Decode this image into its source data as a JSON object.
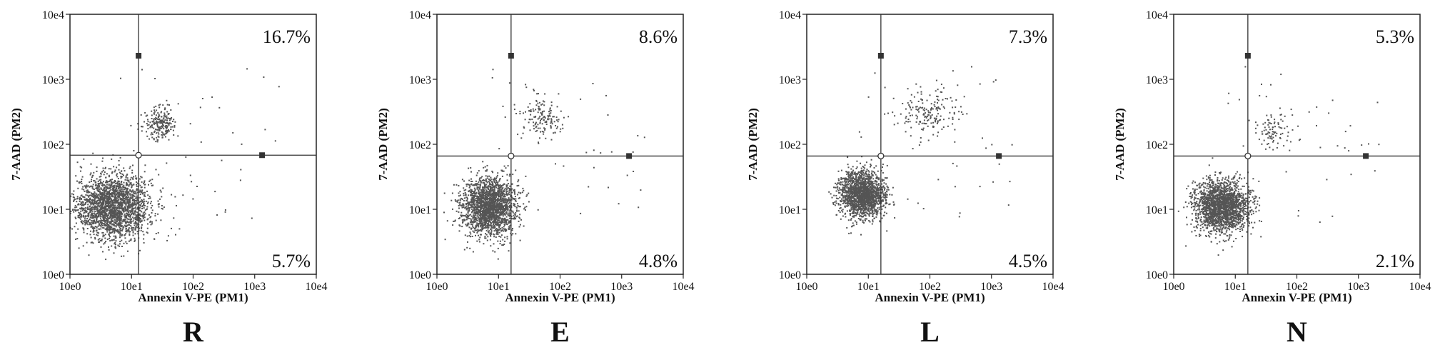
{
  "figure": {
    "x_axis_label": "Annexin V-PE (PM1)",
    "y_axis_label": "7-AAD (PM2)"
  },
  "chart_data": [
    {
      "type": "scatter",
      "panel_label": "R",
      "xlabel": "Annexin V-PE (PM1)",
      "ylabel": "7-AAD (PM2)",
      "x_scale": "log10",
      "y_scale": "log10",
      "xlim": [
        1,
        10000
      ],
      "ylim": [
        1,
        10000
      ],
      "x_ticks": [
        "10e0",
        "10e1",
        "10e2",
        "10e3",
        "10e4"
      ],
      "y_ticks": [
        "10e0",
        "10e1",
        "10e2",
        "10e3",
        "10e4"
      ],
      "gate": {
        "x": 13,
        "y": 68
      },
      "quadrant_labels": {
        "upper_right": "16.7%",
        "lower_right": "5.7%"
      },
      "clusters": [
        {
          "name": "",
          "center_x": 5,
          "center_y": 11,
          "spread_x_decades": 0.3,
          "spread_y_decades": 0.25,
          "approx_events": 2200
        },
        {
          "name": "",
          "center_x": 30,
          "center_y": 200,
          "spread_x_decades": 0.14,
          "spread_y_decades": 0.13,
          "approx_events": 220
        }
      ]
    },
    {
      "type": "scatter",
      "panel_label": "E",
      "xlabel": "Annexin V-PE (PM1)",
      "ylabel": "7-AAD (PM2)",
      "x_scale": "log10",
      "y_scale": "log10",
      "xlim": [
        1,
        10000
      ],
      "ylim": [
        1,
        10000
      ],
      "x_ticks": [
        "10e0",
        "10e1",
        "10e2",
        "10e3",
        "10e4"
      ],
      "y_ticks": [
        "10e0",
        "10e1",
        "10e2",
        "10e3",
        "10e4"
      ],
      "gate": {
        "x": 16,
        "y": 66
      },
      "quadrant_labels": {
        "upper_right": "8.6%",
        "lower_right": "4.8%"
      },
      "clusters": [
        {
          "name": "",
          "center_x": 7,
          "center_y": 11,
          "spread_x_decades": 0.22,
          "spread_y_decades": 0.22,
          "approx_events": 2000
        },
        {
          "name": "",
          "center_x": 50,
          "center_y": 250,
          "spread_x_decades": 0.17,
          "spread_y_decades": 0.15,
          "approx_events": 150
        }
      ]
    },
    {
      "type": "scatter",
      "panel_label": "L",
      "xlabel": "Annexin V-PE (PM1)",
      "ylabel": "7-AAD (PM2)",
      "x_scale": "log10",
      "y_scale": "log10",
      "xlim": [
        1,
        10000
      ],
      "ylim": [
        1,
        10000
      ],
      "x_ticks": [
        "10e0",
        "10e1",
        "10e2",
        "10e3",
        "10e4"
      ],
      "y_ticks": [
        "10e0",
        "10e1",
        "10e2",
        "10e3",
        "10e4"
      ],
      "gate": {
        "x": 16,
        "y": 66
      },
      "quadrant_labels": {
        "upper_right": "7.3%",
        "lower_right": "4.5%"
      },
      "clusters": [
        {
          "name": "",
          "center_x": 8,
          "center_y": 17,
          "spread_x_decades": 0.18,
          "spread_y_decades": 0.18,
          "approx_events": 1800
        },
        {
          "name": "",
          "center_x": 100,
          "center_y": 300,
          "spread_x_decades": 0.25,
          "spread_y_decades": 0.2,
          "approx_events": 180
        }
      ]
    },
    {
      "type": "scatter",
      "panel_label": "N",
      "xlabel": "Annexin V-PE (PM1)",
      "ylabel": "7-AAD (PM2)",
      "x_scale": "log10",
      "y_scale": "log10",
      "xlim": [
        1,
        10000
      ],
      "ylim": [
        1,
        10000
      ],
      "x_ticks": [
        "10e0",
        "10e1",
        "10e2",
        "10e3",
        "10e4"
      ],
      "y_ticks": [
        "10e0",
        "10e1",
        "10e2",
        "10e3",
        "10e4"
      ],
      "gate": {
        "x": 16,
        "y": 66
      },
      "quadrant_labels": {
        "upper_right": "5.3%",
        "lower_right": "2.1%"
      },
      "clusters": [
        {
          "name": "",
          "center_x": 6,
          "center_y": 11,
          "spread_x_decades": 0.22,
          "spread_y_decades": 0.2,
          "approx_events": 2000
        },
        {
          "name": "",
          "center_x": 40,
          "center_y": 160,
          "spread_x_decades": 0.15,
          "spread_y_decades": 0.15,
          "approx_events": 90
        }
      ]
    }
  ]
}
